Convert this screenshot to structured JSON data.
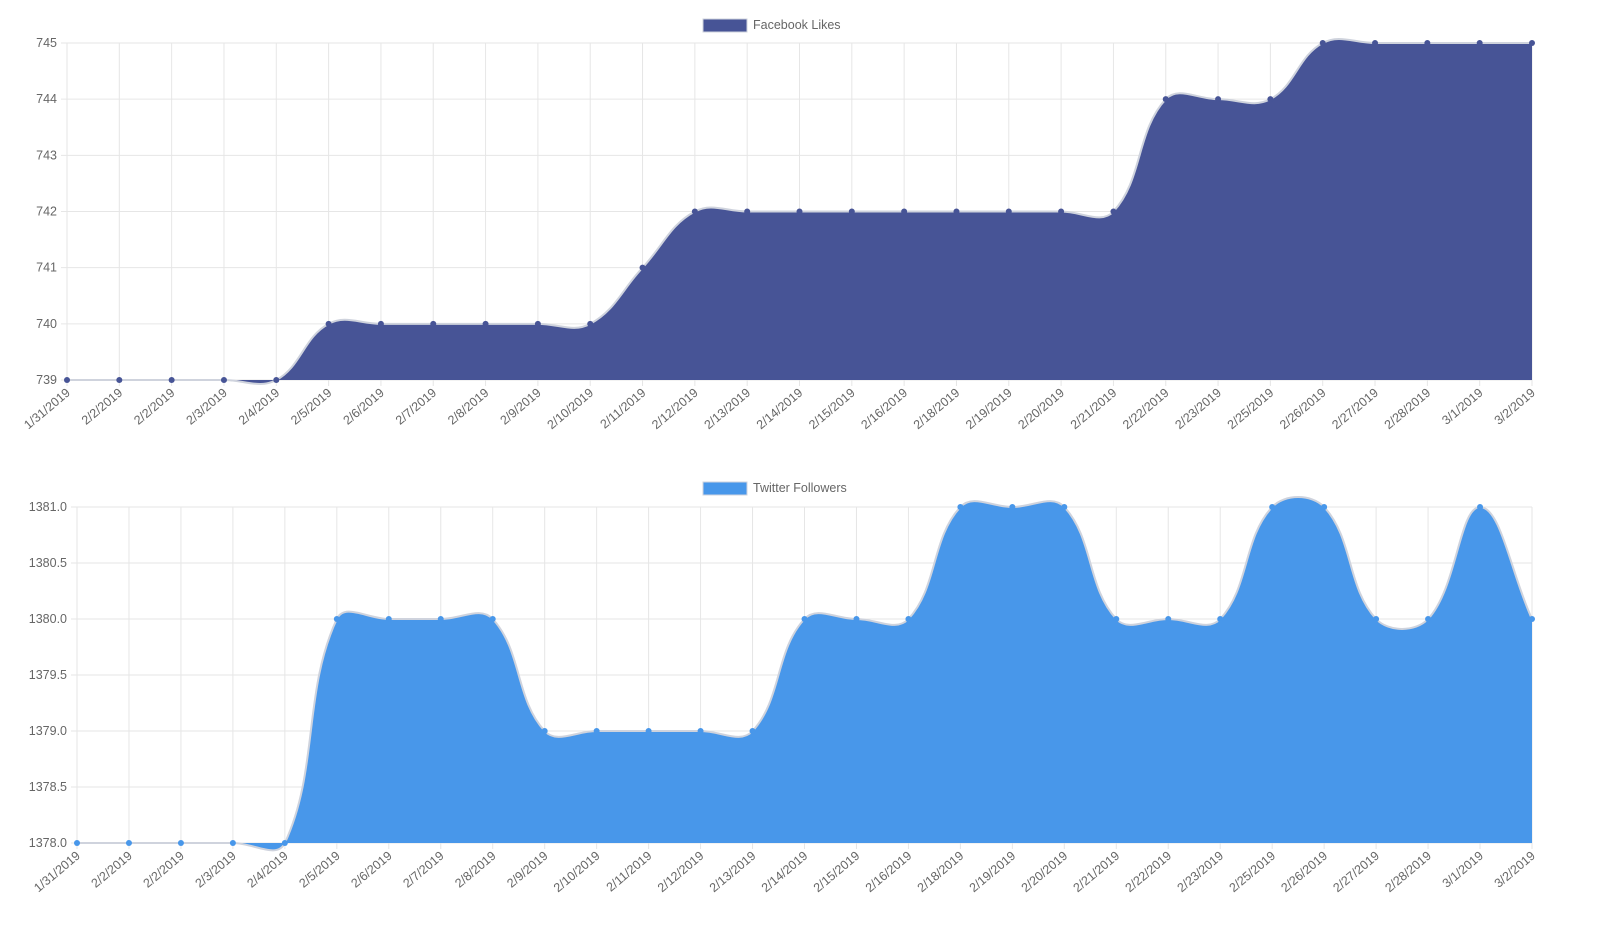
{
  "chart_data": [
    {
      "type": "area",
      "legend": "top",
      "grid": true,
      "smoothing": "bezier",
      "ylim": [
        739,
        745
      ],
      "yticks": [
        "739",
        "740",
        "741",
        "742",
        "743",
        "744",
        "745"
      ],
      "categories": [
        "1/31/2019",
        "2/2/2019",
        "2/2/2019",
        "2/3/2019",
        "2/4/2019",
        "2/5/2019",
        "2/6/2019",
        "2/7/2019",
        "2/8/2019",
        "2/9/2019",
        "2/10/2019",
        "2/11/2019",
        "2/12/2019",
        "2/13/2019",
        "2/14/2019",
        "2/15/2019",
        "2/16/2019",
        "2/18/2019",
        "2/19/2019",
        "2/20/2019",
        "2/21/2019",
        "2/22/2019",
        "2/23/2019",
        "2/25/2019",
        "2/26/2019",
        "2/27/2019",
        "2/28/2019",
        "3/1/2019",
        "3/2/2019"
      ],
      "series": [
        {
          "name": "Facebook Likes",
          "color": "#475496",
          "values": [
            739,
            739,
            739,
            739,
            739,
            740,
            740,
            740,
            740,
            740,
            740,
            741,
            742,
            742,
            742,
            742,
            742,
            742,
            742,
            742,
            742,
            744,
            744,
            744,
            745,
            745,
            745,
            745,
            745
          ]
        }
      ]
    },
    {
      "type": "area",
      "legend": "top",
      "grid": true,
      "smoothing": "bezier",
      "ylim": [
        1378,
        1381
      ],
      "yticks": [
        "1378.0",
        "1378.5",
        "1379.0",
        "1379.5",
        "1380.0",
        "1380.5",
        "1381.0"
      ],
      "categories": [
        "1/31/2019",
        "2/2/2019",
        "2/2/2019",
        "2/3/2019",
        "2/4/2019",
        "2/5/2019",
        "2/6/2019",
        "2/7/2019",
        "2/8/2019",
        "2/9/2019",
        "2/10/2019",
        "2/11/2019",
        "2/12/2019",
        "2/13/2019",
        "2/14/2019",
        "2/15/2019",
        "2/16/2019",
        "2/18/2019",
        "2/19/2019",
        "2/20/2019",
        "2/21/2019",
        "2/22/2019",
        "2/23/2019",
        "2/25/2019",
        "2/26/2019",
        "2/27/2019",
        "2/28/2019",
        "3/1/2019",
        "3/2/2019"
      ],
      "series": [
        {
          "name": "Twitter Followers",
          "color": "#4897ea",
          "values": [
            1378,
            1378,
            1378,
            1378,
            1378,
            1380,
            1380,
            1380,
            1380,
            1379,
            1379,
            1379,
            1379,
            1379,
            1380,
            1380,
            1380,
            1381,
            1381,
            1381,
            1380,
            1380,
            1380,
            1381,
            1381,
            1380,
            1380,
            1381,
            1380
          ]
        }
      ]
    }
  ]
}
